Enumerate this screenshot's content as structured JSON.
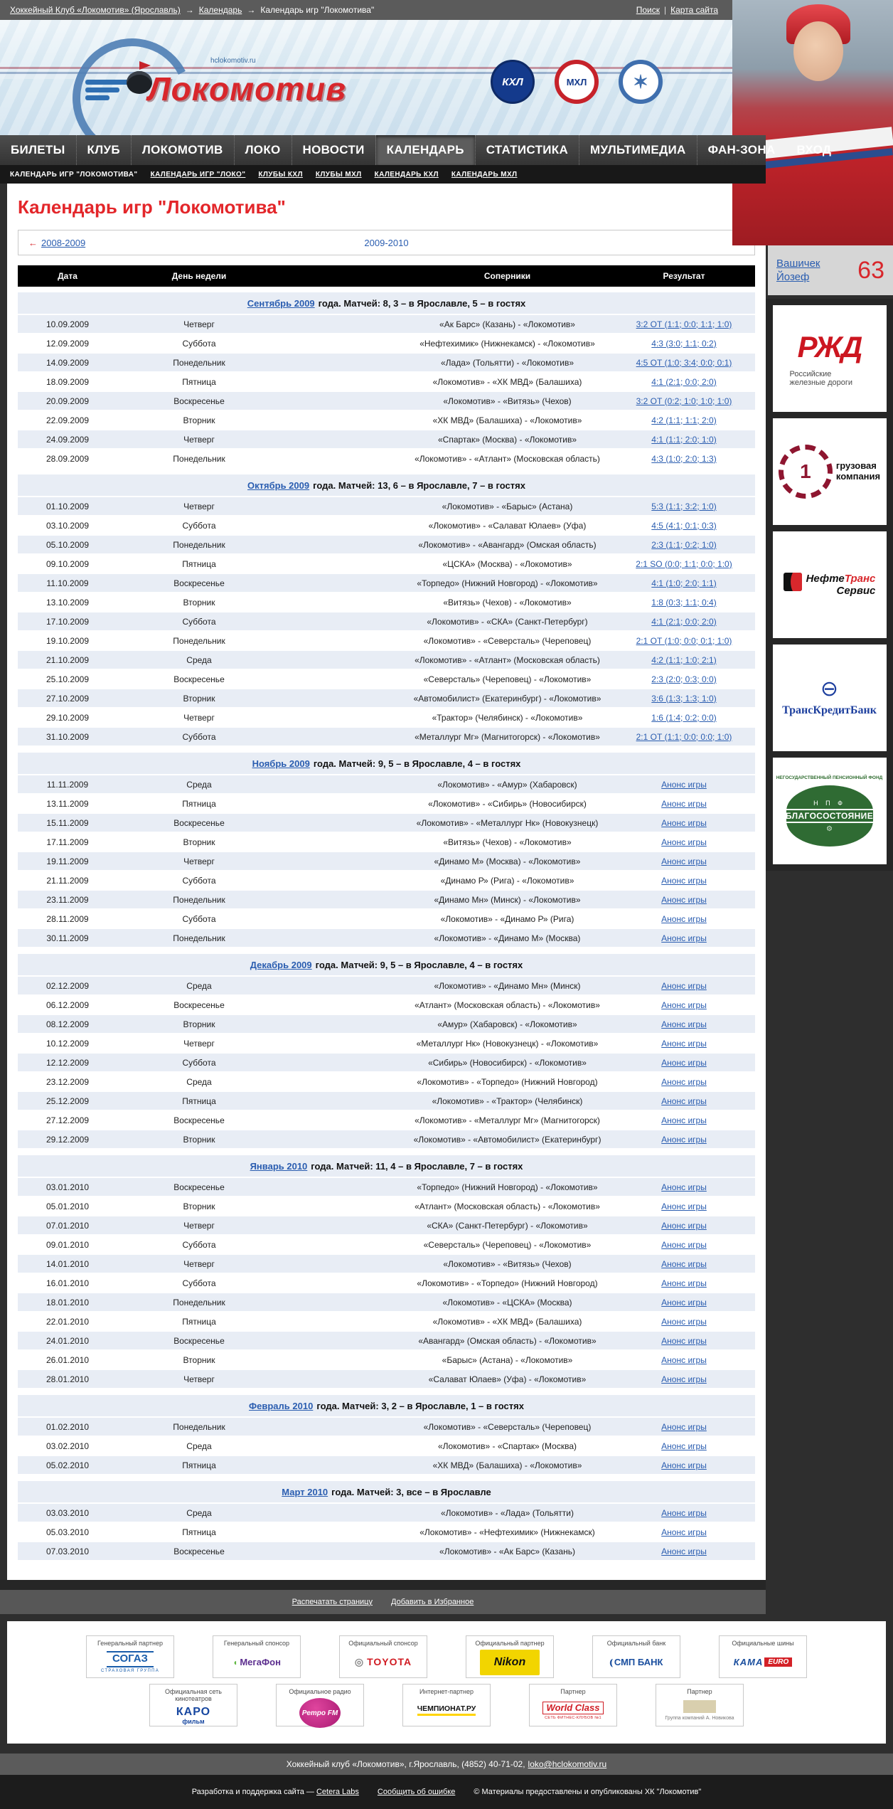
{
  "breadcrumb": {
    "separator": "→",
    "items": [
      {
        "label": "Хоккейный Клуб «Локомотив» (Ярославль)",
        "link": true
      },
      {
        "label": "Календарь",
        "link": true
      },
      {
        "label": "Календарь игр \"Локомотива\"",
        "link": false
      }
    ],
    "search": "Поиск",
    "divider": "|",
    "sitemap": "Карта сайта"
  },
  "header": {
    "site_url": "hclokomotiv.ru",
    "logo_text": "Локомотив",
    "league_logos": [
      "КХЛ",
      "МХЛ",
      "✶"
    ]
  },
  "nav": {
    "items": [
      "БИЛЕТЫ",
      "КЛУБ",
      "ЛОКОМОТИВ",
      "ЛОКО",
      "НОВОСТИ",
      "КАЛЕНДАРЬ",
      "СТАТИСТИКА",
      "МУЛЬТИМЕДИА",
      "ФАН-ЗОНА"
    ],
    "active": "КАЛЕНДАРЬ",
    "login": "ВХОД"
  },
  "subnav": {
    "items": [
      "КАЛЕНДАРЬ ИГР \"ЛОКОМОТИВА\"",
      "КАЛЕНДАРЬ ИГР \"ЛОКО\"",
      "КЛУБЫ КХЛ",
      "КЛУБЫ МХЛ",
      "КАЛЕНДАРЬ КХЛ",
      "КАЛЕНДАРЬ МХЛ"
    ],
    "current_index": 0
  },
  "page": {
    "title": "Календарь игр \"Локомотива\"",
    "season_arrow": "←",
    "season_prev": "2008-2009",
    "season_current": "2009-2010"
  },
  "table": {
    "headers": [
      "Дата",
      "День недели",
      "Соперники",
      "Результат"
    ],
    "months": [
      {
        "link": "Сентябрь 2009",
        "rest": "года. Матчей: 8, 3 – в Ярославле, 5 – в гостях",
        "rows": [
          [
            "10.09.2009",
            "Четверг",
            "«Ак Барс» (Казань) - «Локомотив»",
            "3:2 ОТ (1:1; 0:0; 1:1; 1:0)"
          ],
          [
            "12.09.2009",
            "Суббота",
            "«Нефтехимик» (Нижнекамск) - «Локомотив»",
            "4:3 (3:0; 1:1; 0:2)"
          ],
          [
            "14.09.2009",
            "Понедельник",
            "«Лада» (Тольятти) - «Локомотив»",
            "4:5 ОТ (1:0; 3:4; 0:0; 0:1)"
          ],
          [
            "18.09.2009",
            "Пятница",
            "«Локомотив» - «ХК МВД» (Балашиха)",
            "4:1 (2:1; 0:0; 2:0)"
          ],
          [
            "20.09.2009",
            "Воскресенье",
            "«Локомотив» - «Витязь» (Чехов)",
            "3:2 ОТ (0:2; 1:0; 1:0; 1:0)"
          ],
          [
            "22.09.2009",
            "Вторник",
            "«ХК МВД» (Балашиха) - «Локомотив»",
            "4:2 (1:1; 1:1; 2:0)"
          ],
          [
            "24.09.2009",
            "Четверг",
            "«Спартак» (Москва) - «Локомотив»",
            "4:1 (1:1; 2:0; 1:0)"
          ],
          [
            "28.09.2009",
            "Понедельник",
            "«Локомотив» - «Атлант» (Московская область)",
            "4:3 (1:0; 2:0; 1:3)"
          ]
        ]
      },
      {
        "link": "Октябрь 2009",
        "rest": "года. Матчей: 13, 6 – в Ярославле, 7 – в гостях",
        "rows": [
          [
            "01.10.2009",
            "Четверг",
            "«Локомотив» - «Барыс» (Астана)",
            "5:3 (1:1; 3:2; 1:0)"
          ],
          [
            "03.10.2009",
            "Суббота",
            "«Локомотив» - «Салават Юлаев» (Уфа)",
            "4:5 (4:1; 0:1; 0:3)"
          ],
          [
            "05.10.2009",
            "Понедельник",
            "«Локомотив» - «Авангард» (Омская область)",
            "2:3 (1:1; 0:2; 1:0)"
          ],
          [
            "09.10.2009",
            "Пятница",
            "«ЦСКА» (Москва) - «Локомотив»",
            "2:1 SO (0:0; 1:1; 0:0; 1:0)"
          ],
          [
            "11.10.2009",
            "Воскресенье",
            "«Торпедо» (Нижний Новгород) - «Локомотив»",
            "4:1 (1:0; 2:0; 1:1)"
          ],
          [
            "13.10.2009",
            "Вторник",
            "«Витязь» (Чехов) - «Локомотив»",
            "1:8 (0:3; 1:1; 0:4)"
          ],
          [
            "17.10.2009",
            "Суббота",
            "«Локомотив» - «СКА» (Санкт-Петербург)",
            "4:1 (2:1; 0:0; 2:0)"
          ],
          [
            "19.10.2009",
            "Понедельник",
            "«Локомотив» - «Северсталь» (Череповец)",
            "2:1 ОТ (1:0; 0:0; 0:1; 1:0)"
          ],
          [
            "21.10.2009",
            "Среда",
            "«Локомотив» - «Атлант» (Московская область)",
            "4:2 (1:1; 1:0; 2:1)"
          ],
          [
            "25.10.2009",
            "Воскресенье",
            "«Северсталь» (Череповец) - «Локомотив»",
            "2:3 (2:0; 0:3; 0:0)"
          ],
          [
            "27.10.2009",
            "Вторник",
            "«Автомобилист» (Екатеринбург) - «Локомотив»",
            "3:6 (1:3; 1:3; 1:0)"
          ],
          [
            "29.10.2009",
            "Четверг",
            "«Трактор» (Челябинск) - «Локомотив»",
            "1:6 (1:4; 0:2; 0:0)"
          ],
          [
            "31.10.2009",
            "Суббота",
            "«Металлург Мг» (Магнитогорск) - «Локомотив»",
            "2:1 ОТ (1:1; 0:0; 0:0; 1:0)"
          ]
        ]
      },
      {
        "link": "Ноябрь 2009",
        "rest": "года. Матчей: 9, 5 – в Ярославле, 4 – в гостях",
        "rows": [
          [
            "11.11.2009",
            "Среда",
            "«Локомотив» - «Амур» (Хабаровск)",
            "Анонс игры"
          ],
          [
            "13.11.2009",
            "Пятница",
            "«Локомотив» - «Сибирь» (Новосибирск)",
            "Анонс игры"
          ],
          [
            "15.11.2009",
            "Воскресенье",
            "«Локомотив» - «Металлург Нк» (Новокузнецк)",
            "Анонс игры"
          ],
          [
            "17.11.2009",
            "Вторник",
            "«Витязь» (Чехов) - «Локомотив»",
            "Анонс игры"
          ],
          [
            "19.11.2009",
            "Четверг",
            "«Динамо М» (Москва) - «Локомотив»",
            "Анонс игры"
          ],
          [
            "21.11.2009",
            "Суббота",
            "«Динамо Р» (Рига) - «Локомотив»",
            "Анонс игры"
          ],
          [
            "23.11.2009",
            "Понедельник",
            "«Динамо Мн» (Минск) - «Локомотив»",
            "Анонс игры"
          ],
          [
            "28.11.2009",
            "Суббота",
            "«Локомотив» - «Динамо Р» (Рига)",
            "Анонс игры"
          ],
          [
            "30.11.2009",
            "Понедельник",
            "«Локомотив» - «Динамо М» (Москва)",
            "Анонс игры"
          ]
        ]
      },
      {
        "link": "Декабрь 2009",
        "rest": "года. Матчей: 9, 5 – в Ярославле, 4 – в гостях",
        "rows": [
          [
            "02.12.2009",
            "Среда",
            "«Локомотив» - «Динамо Мн» (Минск)",
            "Анонс игры"
          ],
          [
            "06.12.2009",
            "Воскресенье",
            "«Атлант» (Московская область) - «Локомотив»",
            "Анонс игры"
          ],
          [
            "08.12.2009",
            "Вторник",
            "«Амур» (Хабаровск) - «Локомотив»",
            "Анонс игры"
          ],
          [
            "10.12.2009",
            "Четверг",
            "«Металлург Нк» (Новокузнецк) - «Локомотив»",
            "Анонс игры"
          ],
          [
            "12.12.2009",
            "Суббота",
            "«Сибирь» (Новосибирск) - «Локомотив»",
            "Анонс игры"
          ],
          [
            "23.12.2009",
            "Среда",
            "«Локомотив» - «Торпедо» (Нижний Новгород)",
            "Анонс игры"
          ],
          [
            "25.12.2009",
            "Пятница",
            "«Локомотив» - «Трактор» (Челябинск)",
            "Анонс игры"
          ],
          [
            "27.12.2009",
            "Воскресенье",
            "«Локомотив» - «Металлург Мг» (Магнитогорск)",
            "Анонс игры"
          ],
          [
            "29.12.2009",
            "Вторник",
            "«Локомотив» - «Автомобилист» (Екатеринбург)",
            "Анонс игры"
          ]
        ]
      },
      {
        "link": "Январь 2010",
        "rest": "года. Матчей: 11, 4 – в Ярославле, 7 – в гостях",
        "rows": [
          [
            "03.01.2010",
            "Воскресенье",
            "«Торпедо» (Нижний Новгород) - «Локомотив»",
            "Анонс игры"
          ],
          [
            "05.01.2010",
            "Вторник",
            "«Атлант» (Московская область) - «Локомотив»",
            "Анонс игры"
          ],
          [
            "07.01.2010",
            "Четверг",
            "«СКА» (Санкт-Петербург) - «Локомотив»",
            "Анонс игры"
          ],
          [
            "09.01.2010",
            "Суббота",
            "«Северсталь» (Череповец) - «Локомотив»",
            "Анонс игры"
          ],
          [
            "14.01.2010",
            "Четверг",
            "«Локомотив» - «Витязь» (Чехов)",
            "Анонс игры"
          ],
          [
            "16.01.2010",
            "Суббота",
            "«Локомотив» - «Торпедо» (Нижний Новгород)",
            "Анонс игры"
          ],
          [
            "18.01.2010",
            "Понедельник",
            "«Локомотив» - «ЦСКА» (Москва)",
            "Анонс игры"
          ],
          [
            "22.01.2010",
            "Пятница",
            "«Локомотив» - «ХК МВД» (Балашиха)",
            "Анонс игры"
          ],
          [
            "24.01.2010",
            "Воскресенье",
            "«Авангард» (Омская область) - «Локомотив»",
            "Анонс игры"
          ],
          [
            "26.01.2010",
            "Вторник",
            "«Барыс» (Астана) - «Локомотив»",
            "Анонс игры"
          ],
          [
            "28.01.2010",
            "Четверг",
            "«Салават Юлаев» (Уфа) - «Локомотив»",
            "Анонс игры"
          ]
        ]
      },
      {
        "link": "Февраль 2010",
        "rest": "года. Матчей: 3, 2 – в Ярославле, 1 – в гостях",
        "rows": [
          [
            "01.02.2010",
            "Понедельник",
            "«Локомотив» - «Северсталь» (Череповец)",
            "Анонс игры"
          ],
          [
            "03.02.2010",
            "Среда",
            "«Локомотив» - «Спартак» (Москва)",
            "Анонс игры"
          ],
          [
            "05.02.2010",
            "Пятница",
            "«ХК МВД» (Балашиха) - «Локомотив»",
            "Анонс игры"
          ]
        ]
      },
      {
        "link": "Март 2010",
        "rest": "года. Матчей: 3, все – в Ярославле",
        "rows": [
          [
            "03.03.2010",
            "Среда",
            "«Локомотив» - «Лада» (Тольятти)",
            "Анонс игры"
          ],
          [
            "05.03.2010",
            "Пятница",
            "«Локомотив» - «Нефтехимик» (Нижнекамск)",
            "Анонс игры"
          ],
          [
            "07.03.2010",
            "Воскресенье",
            "«Локомотив» - «Ак Барс» (Казань)",
            "Анонс игры"
          ]
        ]
      }
    ]
  },
  "actions": {
    "print": "Распечатать страницу",
    "favorite": "Добавить в Избранное"
  },
  "sidebar": {
    "player": {
      "name_lines": [
        "Вашичек",
        "Йозеф"
      ],
      "number": "63"
    },
    "sponsors": {
      "rzd": {
        "name": "РЖД",
        "sub": "Российские железные дороги"
      },
      "pgk": {
        "num": "1",
        "line1": "грузовая",
        "line2": "компания"
      },
      "nts": {
        "part1": "Нефте",
        "part2": "Транс",
        "line2": "Сервис"
      },
      "tkb": {
        "mark": "⊖",
        "name": "ТрансКредитБанк"
      },
      "npf": {
        "top": "НЕГОСУДАРСТВЕННЫЙ ПЕНСИОННЫЙ ФОНД",
        "abbr": "Н П Ф",
        "name": "БЛАГОСОСТОЯНИЕ",
        "wing": "⚙"
      }
    }
  },
  "partners": {
    "rows": [
      [
        {
          "label": "Генеральный партнер",
          "name": "СОГАЗ",
          "sub": "СТРАХОВАЯ ГРУППА",
          "style": "sogaz"
        },
        {
          "label": "Генеральный спонсор",
          "name": "МегаФон",
          "style": "megafon"
        },
        {
          "label": "Официальный спонсор",
          "name": "TOYOTA",
          "style": "toyota"
        },
        {
          "label": "Официальный партнер",
          "name": "Nikon",
          "style": "nikon"
        },
        {
          "label": "Официальный банк",
          "name": "СМП БАНК",
          "style": "smp"
        },
        {
          "label": "Официальные шины",
          "name": "КАМА",
          "sub": "EURO",
          "style": "kama"
        }
      ],
      [
        {
          "label": "Официальная сеть кинотеатров",
          "name": "КАРО",
          "sub": "фильм",
          "style": "karo"
        },
        {
          "label": "Официальное радио",
          "name": "Ретро FM",
          "style": "retro"
        },
        {
          "label": "Интернет-партнер",
          "name": "ЧЕМПИОНАТ.РУ",
          "style": "championat"
        },
        {
          "label": "Партнер",
          "name": "World Class",
          "sub": "СЕТЬ ФИТНЕС-КЛУБОВ №1",
          "style": "worldclass"
        },
        {
          "label": "Партнер",
          "name": "Группа компаний А. Новикова",
          "style": "novikov"
        }
      ]
    ]
  },
  "footer": {
    "address": "Хоккейный клуб «Локомотив», г.Ярославль, (4852) 40-71-02,",
    "email": "loko@hclokomotiv.ru",
    "credits_prefix": "Разработка и поддержка сайта —",
    "credits_link": "Cetera Labs",
    "report_link": "Сообщить об ошибке",
    "copyright": "© Материалы предоставлены и опубликованы ХК \"Локомотив\""
  },
  "colors": {
    "accent_red": "#e3262a",
    "link_blue": "#2a5db0",
    "row_shade": "#e8edf5",
    "bar_gray": "#5b5b5b",
    "page_bg": "#2e2e2e"
  }
}
